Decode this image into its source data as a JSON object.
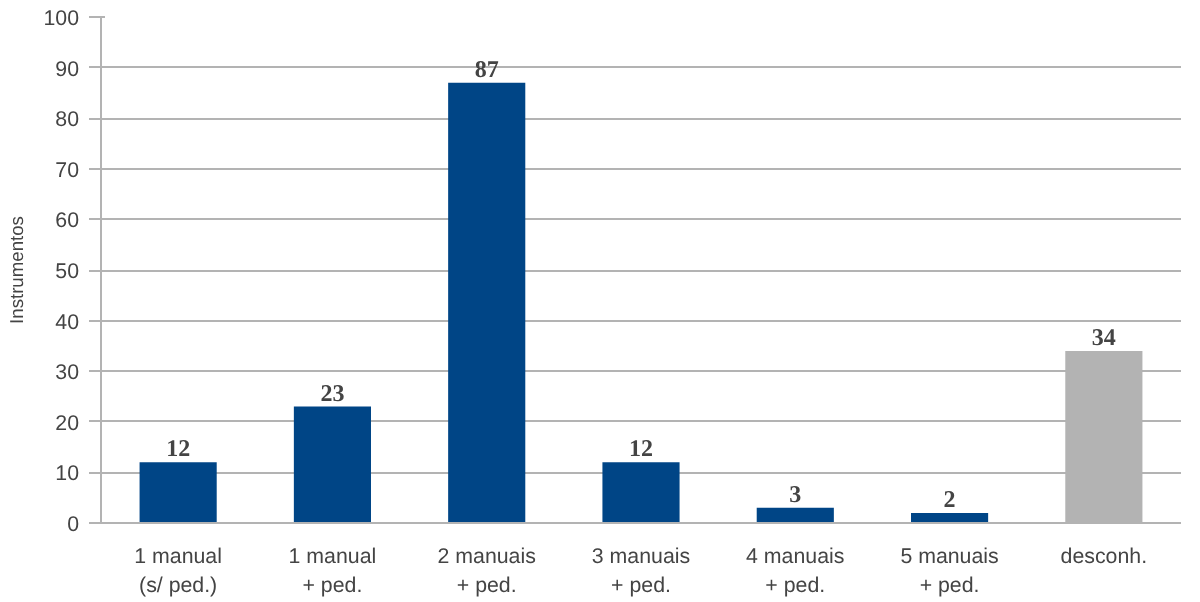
{
  "chart_data": {
    "type": "bar",
    "ylabel": "Instrumentos",
    "categories": [
      "1 manual\n(s/ ped.)",
      "1 manual\n+ ped.",
      "2 manuais\n+ ped.",
      "3 manuais\n+ ped.",
      "4 manuais\n+ ped.",
      "5 manuais\n+ ped.",
      "desconh."
    ],
    "values": [
      12,
      23,
      87,
      12,
      3,
      2,
      34
    ],
    "colors": [
      "#004586",
      "#004586",
      "#004586",
      "#004586",
      "#004586",
      "#004586",
      "#b3b3b3"
    ],
    "ylim": [
      0,
      100
    ],
    "yticks": [
      0,
      10,
      20,
      30,
      40,
      50,
      60,
      70,
      80,
      90,
      100
    ],
    "grid": "y",
    "data_labels": true
  }
}
